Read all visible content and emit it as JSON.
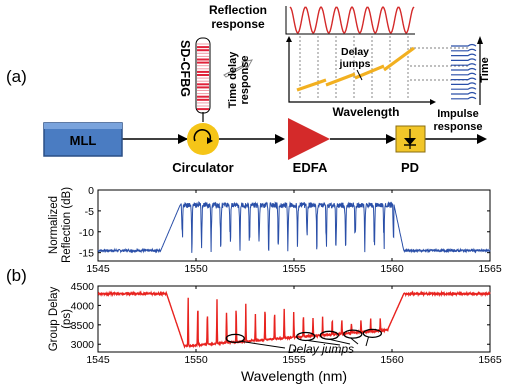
{
  "panel_a": {
    "label": "(a)",
    "mll": "MLL",
    "circulator": "Circulator",
    "sdcfbg": "SD-CFBG",
    "edfa": "EDFA",
    "pd": "PD",
    "reflection_response": [
      "Reflection",
      "response"
    ],
    "time_delay_response": [
      "Time delay",
      "response"
    ],
    "wavelength": "Wavelength",
    "delay_jumps": [
      "Delay",
      "jumps"
    ],
    "time": "Time",
    "impulse_response": [
      "Impulse",
      "response"
    ]
  },
  "panel_b": {
    "label": "(b)",
    "xlabel": "Wavelength (nm)",
    "delay_jumps_annotation": "Delay jumps"
  },
  "colors": {
    "mll_fill": "#4a7cc2",
    "circulator": "#f5c518",
    "edfa": "#d42a2a",
    "pd": "#f2c629",
    "reflection_trace": "#2a4fa8",
    "delay_trace": "#e8231f",
    "delay_line": "#f2b020"
  },
  "chart_data": [
    {
      "type": "line",
      "ylabel": "Normalized Reflection (dB)",
      "xlim": [
        1545,
        1565
      ],
      "ylim": [
        -17,
        0
      ],
      "xticks": [
        1545,
        1550,
        1555,
        1560,
        1565
      ],
      "yticks": [
        0,
        -5,
        -10,
        -15
      ],
      "series": [
        {
          "x": [
            1545,
            1548.3,
            1548.7,
            1549.2,
            1549.5,
            1550.1,
            1550.7,
            1551.3,
            1551.9,
            1552.5,
            1553.1,
            1553.7,
            1554.3,
            1554.9,
            1555.5,
            1556.1,
            1556.7,
            1557.3,
            1557.9,
            1558.5,
            1559.1,
            1559.7,
            1560.0,
            1560.3,
            1561,
            1565
          ],
          "y": [
            -14.5,
            -14.5,
            -12,
            -4,
            -3,
            -9,
            -3,
            -9,
            -3,
            -9,
            -3,
            -9,
            -3,
            -9,
            -3,
            -9,
            -3,
            -9,
            -3,
            -9,
            -3,
            -9,
            -3,
            -14,
            -14.5,
            -14.5
          ]
        }
      ]
    },
    {
      "type": "line",
      "ylabel": "Group Delay (ps)",
      "xlim": [
        1545,
        1565
      ],
      "ylim": [
        2800,
        4500
      ],
      "xticks": [
        1545,
        1550,
        1555,
        1560,
        1565
      ],
      "yticks": [
        3000,
        3500,
        4000,
        4500
      ],
      "series": [
        {
          "x": [
            1545,
            1548.5,
            1549.0,
            1549.5,
            1550.0,
            1551.0,
            1552.0,
            1553.0,
            1554.0,
            1555.0,
            1556.0,
            1557.0,
            1558.0,
            1559.0,
            1559.5,
            1560.0,
            1560.5,
            1565
          ],
          "y": [
            4300,
            4300,
            3500,
            3000,
            2950,
            3050,
            3100,
            3150,
            3200,
            3220,
            3260,
            3300,
            3350,
            3400,
            3550,
            3800,
            4300,
            4300
          ]
        }
      ]
    }
  ]
}
